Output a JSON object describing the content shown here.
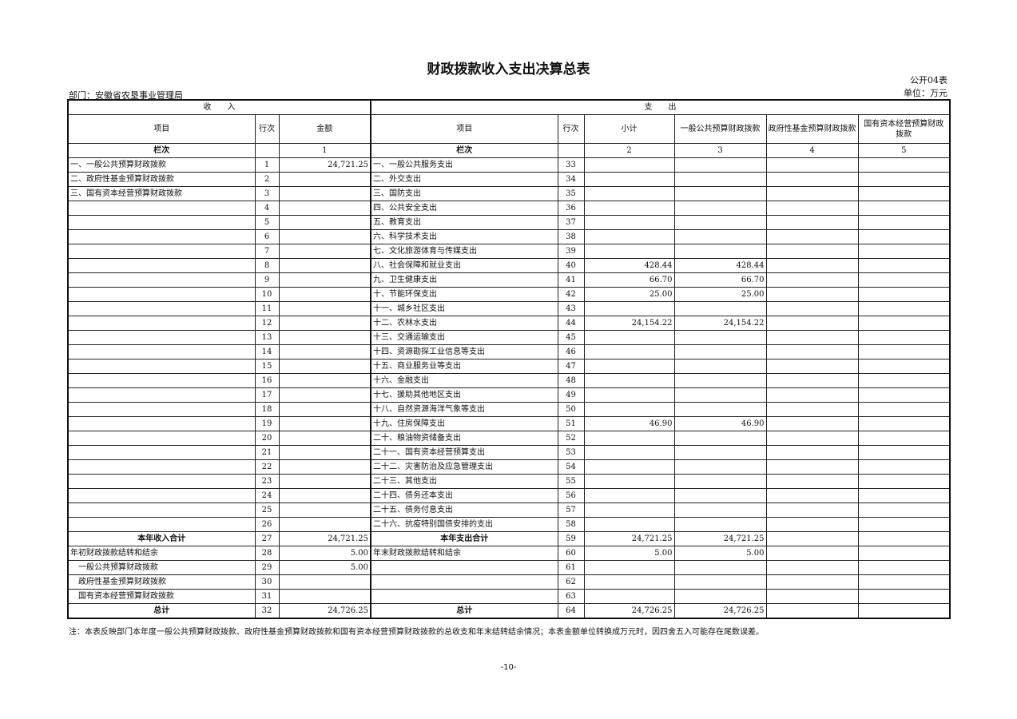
{
  "title": "财政拨款收入支出决算总表",
  "form_no": "公开04表",
  "unit": "单位：万元",
  "department": "部门：安徽省农垦事业管理局",
  "headers": {
    "income": "收　　入",
    "expense": "支　　出",
    "item": "项目",
    "line": "行次",
    "amount": "金额",
    "exp_item": "项目",
    "exp_line": "行次",
    "subtotal": "小计",
    "general": "一般公共预算财政拨款",
    "fund": "政府性基金预算财政拨款",
    "capital": "国有资本经营预算财政拨款",
    "col_label": "栏次",
    "col_label2": "栏次",
    "col1": "1",
    "col2": "2",
    "col3": "3",
    "col4": "4",
    "col5": "5"
  },
  "rows": [
    [
      "一、一般公共预算财政拨款",
      "1",
      "24,721.25",
      "一、一般公共服务支出",
      "33",
      "",
      "",
      "",
      ""
    ],
    [
      "二、政府性基金预算财政拨款",
      "2",
      "",
      "二、外交支出",
      "34",
      "",
      "",
      "",
      ""
    ],
    [
      "三、国有资本经营预算财政拨款",
      "3",
      "",
      "三、国防支出",
      "35",
      "",
      "",
      "",
      ""
    ],
    [
      "",
      "4",
      "",
      "四、公共安全支出",
      "36",
      "",
      "",
      "",
      ""
    ],
    [
      "",
      "5",
      "",
      "五、教育支出",
      "37",
      "",
      "",
      "",
      ""
    ],
    [
      "",
      "6",
      "",
      "六、科学技术支出",
      "38",
      "",
      "",
      "",
      ""
    ],
    [
      "",
      "7",
      "",
      "七、文化旅游体育与传媒支出",
      "39",
      "",
      "",
      "",
      ""
    ],
    [
      "",
      "8",
      "",
      "八、社会保障和就业支出",
      "40",
      "428.44",
      "428.44",
      "",
      ""
    ],
    [
      "",
      "9",
      "",
      "九、卫生健康支出",
      "41",
      "66.70",
      "66.70",
      "",
      ""
    ],
    [
      "",
      "10",
      "",
      "十、节能环保支出",
      "42",
      "25.00",
      "25.00",
      "",
      ""
    ],
    [
      "",
      "11",
      "",
      "十一、城乡社区支出",
      "43",
      "",
      "",
      "",
      ""
    ],
    [
      "",
      "12",
      "",
      "十二、农林水支出",
      "44",
      "24,154.22",
      "24,154.22",
      "",
      ""
    ],
    [
      "",
      "13",
      "",
      "十三、交通运输支出",
      "45",
      "",
      "",
      "",
      ""
    ],
    [
      "",
      "14",
      "",
      "十四、资源勘探工业信息等支出",
      "46",
      "",
      "",
      "",
      ""
    ],
    [
      "",
      "15",
      "",
      "十五、商业服务业等支出",
      "47",
      "",
      "",
      "",
      ""
    ],
    [
      "",
      "16",
      "",
      "十六、金融支出",
      "48",
      "",
      "",
      "",
      ""
    ],
    [
      "",
      "17",
      "",
      "十七、援助其他地区支出",
      "49",
      "",
      "",
      "",
      ""
    ],
    [
      "",
      "18",
      "",
      "十八、自然资源海洋气象等支出",
      "50",
      "",
      "",
      "",
      ""
    ],
    [
      "",
      "19",
      "",
      "十九、住房保障支出",
      "51",
      "46.90",
      "46.90",
      "",
      ""
    ],
    [
      "",
      "20",
      "",
      "二十、粮油物资储备支出",
      "52",
      "",
      "",
      "",
      ""
    ],
    [
      "",
      "21",
      "",
      "二十一、国有资本经营预算支出",
      "53",
      "",
      "",
      "",
      ""
    ],
    [
      "",
      "22",
      "",
      "二十二、灾害防治及应急管理支出",
      "54",
      "",
      "",
      "",
      ""
    ],
    [
      "",
      "23",
      "",
      "二十三、其他支出",
      "55",
      "",
      "",
      "",
      ""
    ],
    [
      "",
      "24",
      "",
      "二十四、债务还本支出",
      "56",
      "",
      "",
      "",
      ""
    ],
    [
      "",
      "25",
      "",
      "二十五、债务付息支出",
      "57",
      "",
      "",
      "",
      ""
    ],
    [
      "",
      "26",
      "",
      "二十六、抗疫特别国债安排的支出",
      "58",
      "",
      "",
      "",
      ""
    ],
    [
      "本年收入合计",
      "27",
      "24,721.25",
      "本年支出合计",
      "59",
      "24,721.25",
      "24,721.25",
      "",
      ""
    ],
    [
      "年初财政拨款结转和结余",
      "28",
      "5.00",
      "年末财政拨款结转和结余",
      "60",
      "5.00",
      "5.00",
      "",
      ""
    ],
    [
      "一般公共预算财政拨款",
      "29",
      "5.00",
      "",
      "61",
      "",
      "",
      "",
      ""
    ],
    [
      "政府性基金预算财政拨款",
      "30",
      "",
      "",
      "62",
      "",
      "",
      "",
      ""
    ],
    [
      "国有资本经营预算财政拨款",
      "31",
      "",
      "",
      "63",
      "",
      "",
      "",
      ""
    ],
    [
      "总计",
      "32",
      "24,726.25",
      "总计",
      "64",
      "24,726.25",
      "24,726.25",
      "",
      ""
    ]
  ],
  "note": "注：本表反映部门本年度一般公共预算财政拨款、政府性基金预算财政拨款和国有资本经营预算财政拨款的总收支和年末结转结余情况；本表金额单位转换成万元时，因四舍五入可能存在尾数误差。",
  "page_number": "-10-"
}
